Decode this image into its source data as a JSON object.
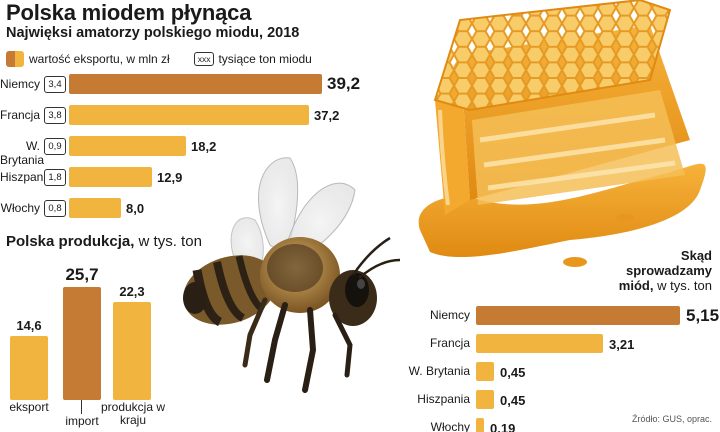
{
  "header": {
    "title": "Polska miodem płynąca",
    "subtitle": "Najwięksi amatorzy polskiego miodu, 2018"
  },
  "legend": {
    "export_label": "wartość eksportu, w mln zł",
    "box_sample": "xxx",
    "tons_label": "tysiące ton miodu"
  },
  "colors": {
    "dark": "#c57b34",
    "light": "#f1b43f",
    "light_alt": "#ecad36"
  },
  "illustrations": [
    "honeybee-illustration",
    "honeycomb-illustration"
  ],
  "chart_data": [
    {
      "type": "bar",
      "orientation": "horizontal",
      "title": "Najwięksi amatorzy polskiego miodu, 2018",
      "categories": [
        "Niemcy",
        "Francja",
        "W. Brytania",
        "Hiszpania",
        "Włochy"
      ],
      "series": [
        {
          "name": "wartość eksportu, w mln zł",
          "values": [
            39.2,
            37.2,
            18.2,
            12.9,
            8.0
          ],
          "labels": [
            "39,2",
            "37,2",
            "18,2",
            "12,9",
            "8,0"
          ]
        },
        {
          "name": "tysiące ton miodu",
          "values": [
            3.4,
            3.8,
            0.9,
            1.8,
            0.8
          ],
          "labels": [
            "3,4",
            "3,8",
            "0,9",
            "1,8",
            "0,8"
          ]
        }
      ],
      "xlim": [
        0,
        40
      ]
    },
    {
      "type": "bar",
      "orientation": "vertical",
      "title": "Polska produkcja",
      "unit": "w tys. ton",
      "categories": [
        "eksport",
        "import",
        "produkcja w kraju"
      ],
      "values": [
        14.6,
        25.7,
        22.3
      ],
      "labels": [
        "14,6",
        "25,7",
        "22,3"
      ],
      "ylim": [
        0,
        26
      ]
    },
    {
      "type": "bar",
      "orientation": "horizontal",
      "title": "Skąd sprowadzamy miód,",
      "unit": "w tys. ton",
      "categories": [
        "Niemcy",
        "Francja",
        "W. Brytania",
        "Hiszpania",
        "Włochy"
      ],
      "values": [
        5.15,
        3.21,
        0.45,
        0.45,
        0.19
      ],
      "labels": [
        "5,15",
        "3,21",
        "0,45",
        "0,45",
        "0,19"
      ],
      "xlim": [
        0,
        5.2
      ]
    }
  ],
  "section_production": {
    "title": "Polska produkcja,",
    "unit": " w tys. ton"
  },
  "section_import": {
    "title_1": "Skąd",
    "title_2": "sprowadzamy",
    "title_3": "miód,",
    "unit": " w tys. ton"
  },
  "source": "Źródło: GUS, oprac."
}
